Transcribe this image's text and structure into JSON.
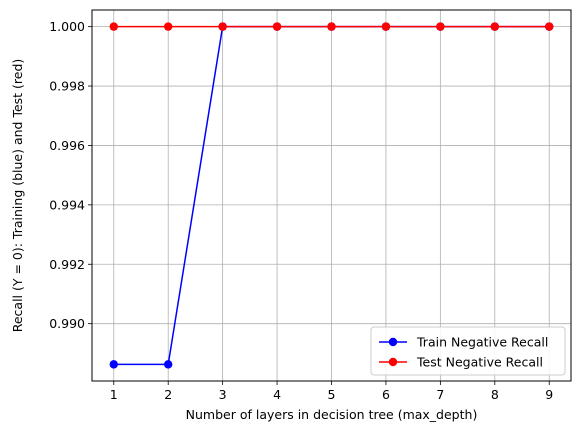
{
  "chart_data": {
    "type": "line",
    "title": "",
    "xlabel": "Number of layers in decision tree (max_depth)",
    "ylabel": "Recall (Y = 0): Training (blue) and Test (red)",
    "x": [
      1,
      2,
      3,
      4,
      5,
      6,
      7,
      8,
      9
    ],
    "x_ticks": [
      "1",
      "2",
      "3",
      "4",
      "5",
      "6",
      "7",
      "8",
      "9"
    ],
    "xlim": [
      0.6,
      9.4
    ],
    "ylim": [
      0.98807,
      1.00056
    ],
    "y_ticks": [
      0.99,
      0.992,
      0.994,
      0.996,
      0.998,
      1.0
    ],
    "y_tick_labels": [
      "0.990",
      "0.992",
      "0.994",
      "0.996",
      "0.998",
      "1.000"
    ],
    "grid": true,
    "legend_position": "lower-right",
    "series": [
      {
        "name": "Train Negative Recall",
        "color": "#0000ff",
        "marker": "circle",
        "values": [
          0.98863,
          0.98863,
          1.0,
          1.0,
          1.0,
          1.0,
          1.0,
          1.0,
          1.0
        ]
      },
      {
        "name": "Test Negative Recall",
        "color": "#ff0000",
        "marker": "circle",
        "values": [
          1.0,
          1.0,
          1.0,
          1.0,
          1.0,
          1.0,
          1.0,
          1.0,
          1.0
        ]
      }
    ]
  }
}
